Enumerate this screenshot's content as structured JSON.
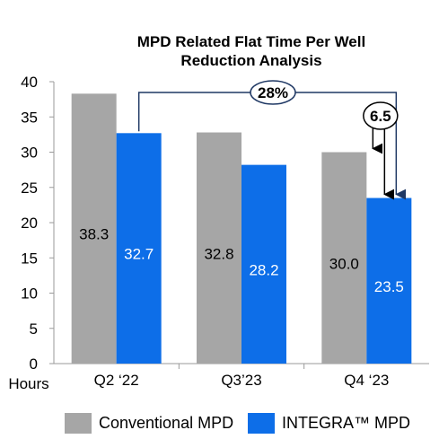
{
  "chart_data": {
    "type": "bar",
    "title_line1": "MPD Related Flat Time Per Well",
    "title_line2": "Reduction Analysis",
    "ylabel": "Hours",
    "xlabel": "",
    "ylim": [
      0,
      40
    ],
    "yticks": [
      0,
      5,
      10,
      15,
      20,
      25,
      30,
      35,
      40
    ],
    "categories": [
      "Q2 ‘22",
      "Q3’23",
      "Q4 ‘23"
    ],
    "series": [
      {
        "name": "Conventional MPD",
        "color": "#a6a6a6",
        "values": [
          38.3,
          32.8,
          30.0
        ],
        "labels": [
          "38.3",
          "32.8",
          "30.0"
        ]
      },
      {
        "name": "INTEGRA™ MPD",
        "color": "#0d6ee8",
        "values": [
          32.7,
          28.2,
          23.5
        ],
        "labels": [
          "32.7",
          "28.2",
          "23.5"
        ]
      }
    ],
    "annotations": [
      {
        "text": "28%",
        "from": "Q2 INTEGRA",
        "to": "Q4 INTEGRA"
      },
      {
        "text": "6.5",
        "from": "Q4 Conventional",
        "to": "Q4 INTEGRA"
      }
    ],
    "legend_position": "bottom",
    "grid": false
  }
}
